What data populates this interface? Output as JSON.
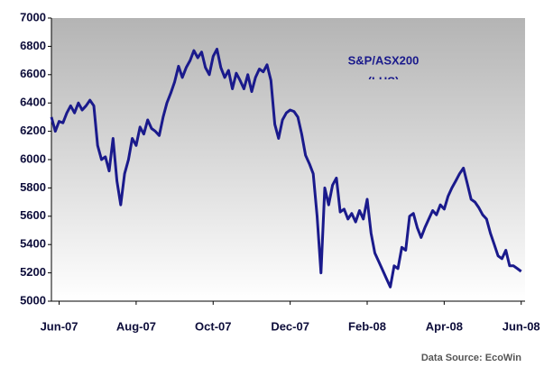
{
  "chart_data": {
    "type": "line",
    "annotations": [
      "(LHS)"
    ],
    "source": "Data Source: EcoWin",
    "x": [
      -0.2,
      -0.1,
      0,
      0.1,
      0.2,
      0.3,
      0.4,
      0.5,
      0.6,
      0.7,
      0.8,
      0.9,
      1,
      1.1,
      1.2,
      1.3,
      1.4,
      1.5,
      1.6,
      1.7,
      1.8,
      1.9,
      2,
      2.1,
      2.2,
      2.3,
      2.4,
      2.5,
      2.6,
      2.7,
      2.8,
      2.9,
      3,
      3.1,
      3.2,
      3.3,
      3.4,
      3.5,
      3.6,
      3.7,
      3.8,
      3.9,
      4,
      4.1,
      4.2,
      4.3,
      4.4,
      4.5,
      4.6,
      4.7,
      4.8,
      4.9,
      5,
      5.1,
      5.2,
      5.3,
      5.4,
      5.5,
      5.6,
      5.7,
      5.8,
      5.9,
      6,
      6.1,
      6.2,
      6.3,
      6.4,
      6.5,
      6.6,
      6.7,
      6.8,
      6.9,
      7,
      7.1,
      7.2,
      7.3,
      7.4,
      7.5,
      7.6,
      7.7,
      7.8,
      7.9,
      8,
      8.1,
      8.2,
      8.3,
      8.4,
      8.5,
      8.6,
      8.7,
      8.8,
      8.9,
      9,
      9.1,
      9.2,
      9.3,
      9.4,
      9.5,
      9.6,
      9.7,
      9.8,
      9.9,
      10,
      10.1,
      10.2,
      10.3,
      10.4,
      10.5,
      10.6,
      10.7,
      10.8,
      10.9,
      11,
      11.1,
      11.2,
      11.3,
      11.4,
      11.5,
      11.6,
      11.7,
      11.8,
      11.9,
      12
    ],
    "series": [
      {
        "name": "S&P/ASX200",
        "color": "#1a1a8c",
        "values": [
          6300,
          6200,
          6270,
          6260,
          6330,
          6380,
          6330,
          6400,
          6350,
          6380,
          6420,
          6380,
          6100,
          6000,
          6020,
          5920,
          6150,
          5850,
          5680,
          5900,
          6000,
          6150,
          6100,
          6230,
          6180,
          6280,
          6220,
          6200,
          6170,
          6300,
          6400,
          6470,
          6550,
          6660,
          6580,
          6650,
          6700,
          6770,
          6720,
          6760,
          6650,
          6600,
          6730,
          6780,
          6650,
          6580,
          6630,
          6500,
          6610,
          6560,
          6500,
          6600,
          6480,
          6580,
          6640,
          6620,
          6670,
          6560,
          6250,
          6150,
          6280,
          6330,
          6350,
          6340,
          6300,
          6180,
          6030,
          5970,
          5900,
          5600,
          5200,
          5800,
          5680,
          5820,
          5870,
          5630,
          5650,
          5580,
          5620,
          5560,
          5640,
          5580,
          5720,
          5480,
          5340,
          5280,
          5220,
          5160,
          5100,
          5250,
          5230,
          5380,
          5360,
          5600,
          5620,
          5520,
          5450,
          5520,
          5580,
          5640,
          5610,
          5680,
          5650,
          5740,
          5800,
          5850,
          5900,
          5940,
          5830,
          5720,
          5700,
          5660,
          5610,
          5580,
          5480,
          5400,
          5320,
          5300,
          5360,
          5250,
          5250,
          5230,
          5210
        ]
      }
    ],
    "xlim": [
      -0.2,
      12.1
    ],
    "xticks": [
      {
        "value": 0,
        "label": "Jun-07"
      },
      {
        "value": 2,
        "label": "Aug-07"
      },
      {
        "value": 4,
        "label": "Oct-07"
      },
      {
        "value": 6,
        "label": "Dec-07"
      },
      {
        "value": 8,
        "label": "Feb-08"
      },
      {
        "value": 10,
        "label": "Apr-08"
      },
      {
        "value": 12,
        "label": "Jun-08"
      }
    ],
    "ylim": [
      5000,
      7000
    ],
    "yticks": [
      5000,
      5200,
      5400,
      5600,
      5800,
      6000,
      6200,
      6400,
      6600,
      6800,
      7000
    ]
  }
}
